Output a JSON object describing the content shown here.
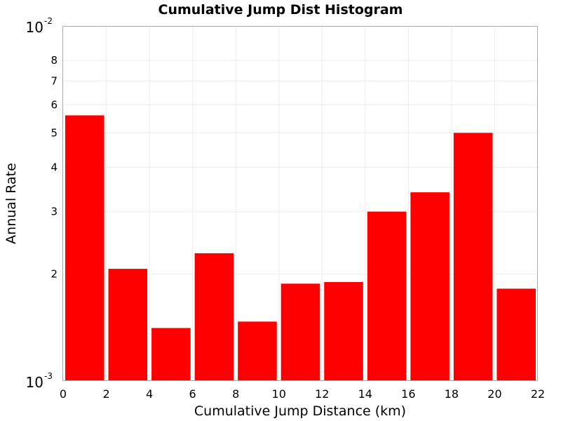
{
  "chart_data": {
    "type": "bar",
    "title": "Cumulative Jump Dist Histogram",
    "xlabel": "Cumulative Jump Distance (km)",
    "ylabel": "Annual Rate",
    "x_scale": "linear",
    "y_scale": "log",
    "xlim": [
      0,
      22
    ],
    "ylim": [
      0.001,
      0.01
    ],
    "grid": true,
    "bar_color": "#ff0000",
    "x_ticks": [
      "0",
      "2",
      "4",
      "6",
      "8",
      "10",
      "12",
      "14",
      "16",
      "18",
      "20",
      "22"
    ],
    "y_minor_ticks": [
      {
        "value": 0.002,
        "label": "2"
      },
      {
        "value": 0.003,
        "label": "3"
      },
      {
        "value": 0.004,
        "label": "4"
      },
      {
        "value": 0.005,
        "label": "5"
      },
      {
        "value": 0.006,
        "label": "6"
      },
      {
        "value": 0.007,
        "label": "7"
      },
      {
        "value": 0.008,
        "label": "8"
      }
    ],
    "y_major_ticks": [
      {
        "value": 0.001,
        "base": "10",
        "exp": "-3"
      },
      {
        "value": 0.01,
        "base": "10",
        "exp": "-2"
      }
    ],
    "bars": [
      {
        "x0": 0,
        "x1": 2,
        "value": 0.0056
      },
      {
        "x0": 2,
        "x1": 4,
        "value": 0.00207
      },
      {
        "x0": 4,
        "x1": 6,
        "value": 0.00141
      },
      {
        "x0": 6,
        "x1": 8,
        "value": 0.00229
      },
      {
        "x0": 8,
        "x1": 10,
        "value": 0.00147
      },
      {
        "x0": 10,
        "x1": 12,
        "value": 0.00188
      },
      {
        "x0": 12,
        "x1": 14,
        "value": 0.0019
      },
      {
        "x0": 14,
        "x1": 16,
        "value": 0.003
      },
      {
        "x0": 16,
        "x1": 18,
        "value": 0.0034
      },
      {
        "x0": 18,
        "x1": 20,
        "value": 0.005
      },
      {
        "x0": 20,
        "x1": 22,
        "value": 0.00182
      }
    ]
  }
}
